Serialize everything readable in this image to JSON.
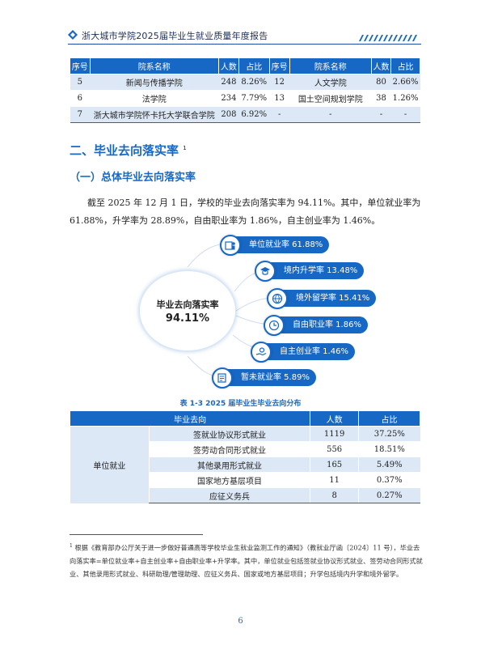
{
  "header": {
    "title": "浙大城市学院2025届毕业生就业质量年度报告",
    "colors": {
      "accent": "#1768c4",
      "rule": "#1f4aa8"
    }
  },
  "table1": {
    "headers": [
      "序号",
      "院系名称",
      "人数",
      "占比",
      "序号",
      "院系名称",
      "人数",
      "占比"
    ],
    "rows": [
      [
        "5",
        "新闻与传播学院",
        "248",
        "8.26%",
        "12",
        "人文学院",
        "80",
        "2.66%"
      ],
      [
        "6",
        "法学院",
        "234",
        "7.79%",
        "13",
        "国土空间规划学院",
        "38",
        "1.26%"
      ],
      [
        "7",
        "浙大城市学院怀卡托大学联合学院",
        "208",
        "6.92%",
        "-",
        "-",
        "-",
        "-"
      ]
    ]
  },
  "section": {
    "heading": "二、毕业去向落实率",
    "heading_note": "1",
    "subheading": "（一）总体毕业去向落实率",
    "paragraph": "截至 2025 年 12 月 1 日，学校的毕业去向落实率为 94.11%。其中，单位就业率为 61.88%，升学率为 28.89%，自由职业率为 1.86%，自主创业率为 1.46%。"
  },
  "infographic": {
    "center_label": "毕业去向落实率",
    "center_value": "94.11%",
    "items": [
      {
        "label": "单位就业率 61.88%",
        "icon": "employment-icon"
      },
      {
        "label": "境内升学率 13.48%",
        "icon": "graduation-cap-icon"
      },
      {
        "label": "境外留学率 15.41%",
        "icon": "globe-plane-icon"
      },
      {
        "label": "自由职业率 1.86%",
        "icon": "clock-icon"
      },
      {
        "label": "自主创业率 1.46%",
        "icon": "hand-coin-icon"
      },
      {
        "label": "暂未就业率 5.89%",
        "icon": "resume-icon"
      }
    ]
  },
  "table2": {
    "caption": "表 1-3  2025 届毕业生毕业去向分布",
    "headers": [
      "毕业去向",
      "人数",
      "占比"
    ],
    "group": "单位就业",
    "rows": [
      [
        "签就业协议形式就业",
        "1119",
        "37.25%"
      ],
      [
        "签劳动合同形式就业",
        "556",
        "18.51%"
      ],
      [
        "其他录用形式就业",
        "165",
        "5.49%"
      ],
      [
        "国家地方基层项目",
        "11",
        "0.37%"
      ],
      [
        "应征义务兵",
        "8",
        "0.27%"
      ]
    ]
  },
  "footnote": {
    "mark": "1",
    "text": "根据《教育部办公厅关于进一步做好普通高等学校毕业生就业监测工作的通知》（教就业厅函〔2024〕11 号），毕业去向落实率=单位就业率+自主创业率+自由职业率+升学率。其中，单位就业包括签就业协议形式就业、签劳动合同形式就业、其他录用形式就业、科研助理/管理助理、应征义务兵、国家或地方基层项目；升学包括境内升学和境外留学。"
  },
  "page_number": "6"
}
